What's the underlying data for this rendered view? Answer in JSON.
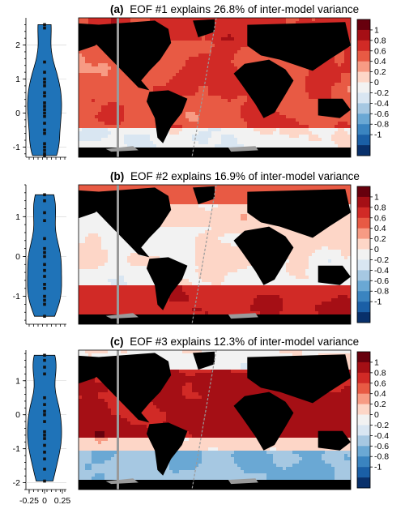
{
  "chart_data": [
    {
      "type": "map+violin",
      "panel": "(a)",
      "title": "EOF #1 explains 26.8% of inter-model variance",
      "violin": {
        "y_ticks": [
          -1,
          0,
          1,
          2
        ],
        "y_range": [
          -1.3,
          2.8
        ],
        "points": [
          2.6,
          2.5,
          1.5,
          1.2,
          1.0,
          0.9,
          0.8,
          0.6,
          0.5,
          0.3,
          0.2,
          0.1,
          0.0,
          -0.1,
          -0.3,
          -0.5,
          -0.6,
          -0.9,
          -1.0,
          -1.1,
          -1.2,
          -1.25
        ]
      },
      "field": "positive"
    },
    {
      "type": "map+violin",
      "panel": "(b)",
      "title": "EOF #2 explains 16.9% of inter-model variance",
      "violin": {
        "y_ticks": [
          -1,
          0,
          1
        ],
        "y_range": [
          -1.7,
          1.8
        ],
        "points": [
          1.55,
          1.4,
          1.1,
          0.9,
          0.45,
          0.2,
          0.1,
          0.0,
          -0.2,
          -0.35,
          -0.5,
          -0.7,
          -0.8,
          -1.0,
          -1.1,
          -1.2,
          -1.5
        ]
      },
      "field": "southern"
    },
    {
      "type": "map+violin",
      "panel": "(c)",
      "title": "EOF #3 explains 12.3% of inter-model variance",
      "violin": {
        "y_ticks": [
          -2,
          -1,
          0,
          1
        ],
        "y_range": [
          -2.2,
          1.9
        ],
        "points": [
          1.75,
          1.6,
          1.4,
          1.2,
          0.5,
          0.3,
          0.1,
          0.0,
          -0.2,
          -0.5,
          -0.6,
          -0.7,
          -0.9,
          -1.1,
          -1.3,
          -1.6,
          -1.95
        ]
      },
      "field": "dipole"
    }
  ],
  "violin_x_ticks": [
    "-0.25",
    "0",
    "0.25"
  ],
  "colorbar": {
    "ticks": [
      "1",
      "0.8",
      "0.6",
      "0.4",
      "0.2",
      "0",
      "-0.2",
      "-0.4",
      "-0.6",
      "-0.8",
      "-1"
    ],
    "colors": [
      "#67000d",
      "#a50f15",
      "#d12a26",
      "#e85a44",
      "#f79b84",
      "#fdd6c7",
      "#f2f2f2",
      "#d9e6f2",
      "#a6c8e2",
      "#6aa8d4",
      "#3a84c0",
      "#1a5fa6",
      "#08306b"
    ]
  }
}
